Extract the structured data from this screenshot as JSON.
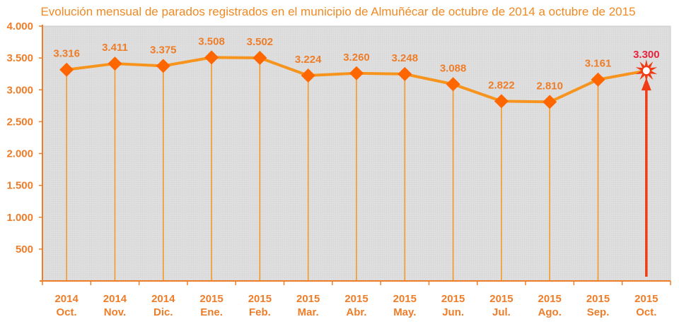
{
  "chart_data": {
    "type": "line",
    "title": "Evolución mensual de parados registrados en el municipio de Almuñécar de octubre de 2014 a octubre de 2015",
    "xlabel": "",
    "ylabel": "",
    "ylim": [
      0,
      4000
    ],
    "grid": false,
    "yticks": [
      "4.000",
      "3.500",
      "3.000",
      "2.500",
      "2.000",
      "1.500",
      "1.000",
      "500"
    ],
    "ytick_values": [
      4000,
      3500,
      3000,
      2500,
      2000,
      1500,
      1000,
      500
    ],
    "categories": [
      {
        "year": "2014",
        "month": "Oct."
      },
      {
        "year": "2014",
        "month": "Nov."
      },
      {
        "year": "2014",
        "month": "Dic."
      },
      {
        "year": "2015",
        "month": "Ene."
      },
      {
        "year": "2015",
        "month": "Feb."
      },
      {
        "year": "2015",
        "month": "Mar."
      },
      {
        "year": "2015",
        "month": "Abr."
      },
      {
        "year": "2015",
        "month": "May."
      },
      {
        "year": "2015",
        "month": "Jun."
      },
      {
        "year": "2015",
        "month": "Jul."
      },
      {
        "year": "2015",
        "month": "Ago."
      },
      {
        "year": "2015",
        "month": "Sep."
      },
      {
        "year": "2015",
        "month": "Oct."
      }
    ],
    "series": [
      {
        "name": "Parados registrados",
        "values": [
          3316,
          3411,
          3375,
          3508,
          3502,
          3224,
          3260,
          3248,
          3088,
          2822,
          2810,
          3161,
          3300
        ],
        "labels": [
          "3.316",
          "3.411",
          "3.375",
          "3.508",
          "3.502",
          "3.224",
          "3.260",
          "3.248",
          "3.088",
          "2.822",
          "2.810",
          "3.161",
          "3.300"
        ]
      }
    ],
    "highlight_index": 12,
    "colors": {
      "line": "#f7941d",
      "marker": "#ff6600",
      "text": "#ee7d2a",
      "highlight": "#f03c14",
      "highlight_label": "#e8233c",
      "plot_bg": "#dcdcdc",
      "axis": "#ee7d2a"
    }
  }
}
